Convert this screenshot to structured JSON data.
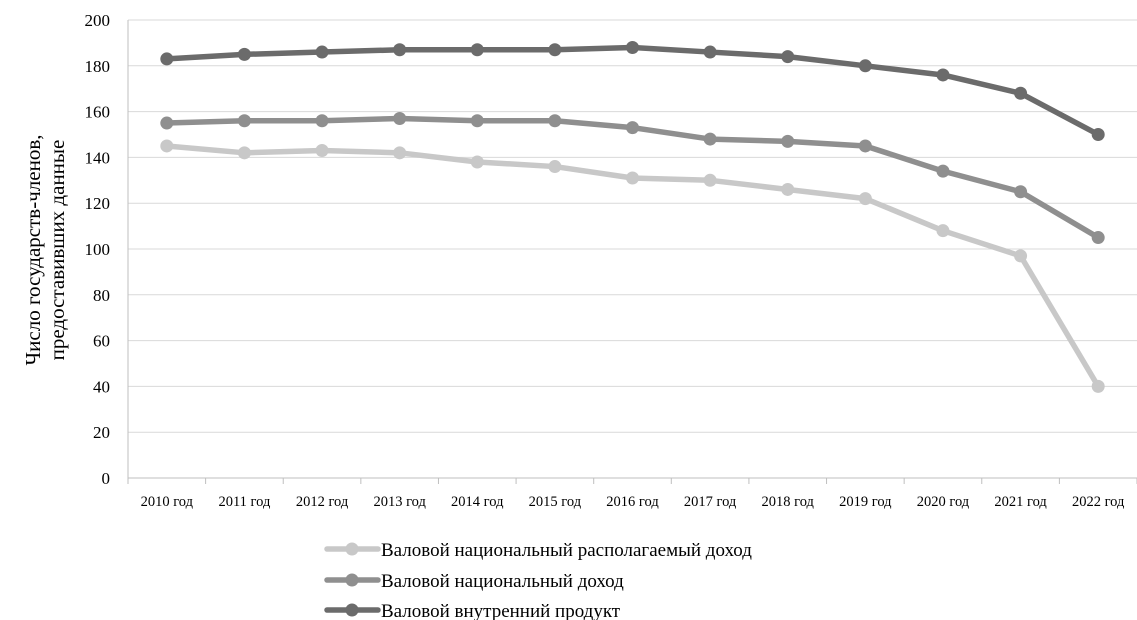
{
  "chart_data": {
    "type": "line",
    "title": "",
    "xlabel": "",
    "ylabel_lines": [
      "Число государств-членов,",
      "предоставивших данные"
    ],
    "categories": [
      "2010 год",
      "2011 год",
      "2012 год",
      "2013 год",
      "2014 год",
      "2015 год",
      "2016 год",
      "2017 год",
      "2018 год",
      "2019 год",
      "2020 год",
      "2021 год",
      "2022 год"
    ],
    "ylim": [
      0,
      200
    ],
    "yticks": [
      "0",
      "20",
      "40",
      "60",
      "80",
      "100",
      "120",
      "140",
      "160",
      "180",
      "200"
    ],
    "grid": true,
    "legend_position": "bottom",
    "series": [
      {
        "name": "Валовой национальный располагаемый доход",
        "color": "#c8c8c8",
        "values": [
          145,
          142,
          143,
          142,
          138,
          136,
          131,
          130,
          126,
          122,
          108,
          97,
          40
        ]
      },
      {
        "name": "Валовой национальный доход",
        "color": "#8f8f8f",
        "values": [
          155,
          156,
          156,
          157,
          156,
          156,
          153,
          148,
          147,
          145,
          134,
          125,
          105
        ]
      },
      {
        "name": "Валовой внутренний продукт",
        "color": "#6b6b6b",
        "values": [
          183,
          185,
          186,
          187,
          187,
          187,
          188,
          186,
          184,
          180,
          176,
          168,
          150
        ]
      }
    ]
  }
}
